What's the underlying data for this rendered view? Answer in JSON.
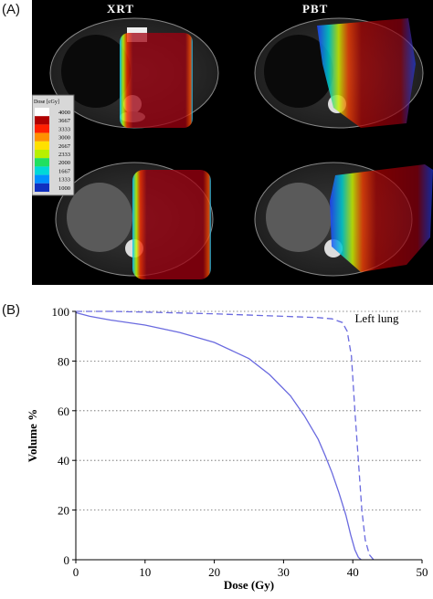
{
  "panel_a": {
    "label": "(A)",
    "columns": [
      "XRT",
      "PBT"
    ],
    "colorbar": {
      "title": "Dose [cGy]",
      "ticks": [
        "4000",
        "3667",
        "3333",
        "3000",
        "2667",
        "2333",
        "2000",
        "1667",
        "1333",
        "1000"
      ],
      "colors": [
        "#ffffff",
        "#b00000",
        "#ff2000",
        "#ff9000",
        "#ffe000",
        "#b8f000",
        "#20e060",
        "#00d8d8",
        "#0090ff",
        "#1030c0"
      ]
    }
  },
  "panel_b": {
    "label": "(B)"
  },
  "chart_data": {
    "type": "line",
    "xlabel": "Dose (Gy)",
    "ylabel": "Volume %",
    "xlim": [
      0,
      50
    ],
    "ylim": [
      0,
      100
    ],
    "xticks": [
      0,
      10,
      20,
      30,
      40,
      50
    ],
    "yticks": [
      0,
      20,
      40,
      60,
      80,
      100
    ],
    "grid": "horizontal dotted",
    "annotation": "Left lung",
    "series": [
      {
        "style": "solid",
        "color": "#6a6adf",
        "x": [
          0,
          2,
          5,
          10,
          15,
          20,
          25,
          28,
          31,
          33,
          35,
          36,
          37,
          38,
          39,
          39.7,
          40.3,
          40.8,
          41.2
        ],
        "y": [
          99.5,
          98,
          96.5,
          94.5,
          91.5,
          87.5,
          81,
          74.5,
          66,
          58,
          48.5,
          42,
          35,
          27,
          18,
          10,
          4,
          1,
          0
        ]
      },
      {
        "style": "dashed",
        "color": "#6a6adf",
        "x": [
          0,
          5,
          10,
          20,
          30,
          35,
          37,
          38.5,
          39.2,
          39.8,
          40.3,
          40.8,
          41.3,
          41.8,
          42.4,
          43
        ],
        "y": [
          100,
          100,
          99.7,
          99,
          98,
          97.5,
          97,
          95.5,
          92,
          82,
          60,
          40,
          20,
          8,
          2,
          0
        ]
      }
    ]
  }
}
